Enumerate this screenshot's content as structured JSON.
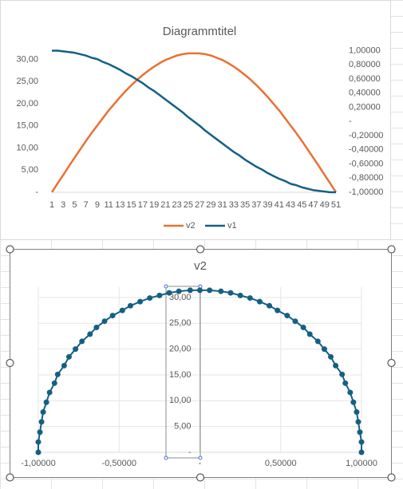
{
  "chart_data": [
    {
      "type": "line",
      "title": "Diagrammtitel",
      "categories": [
        1,
        null,
        3,
        null,
        5,
        null,
        7,
        null,
        9,
        null,
        11,
        null,
        13,
        null,
        15,
        null,
        17,
        null,
        19,
        null,
        21,
        null,
        23,
        null,
        25,
        null,
        27,
        null,
        29,
        null,
        31,
        null,
        33,
        null,
        35,
        null,
        37,
        null,
        39,
        null,
        41,
        null,
        43,
        null,
        45,
        null,
        47,
        null,
        49,
        null,
        51
      ],
      "series": [
        {
          "name": "v2",
          "color": "#e97132",
          "values": [
            0,
            2.0,
            3.9,
            5.9,
            7.8,
            9.7,
            11.6,
            13.4,
            15.1,
            16.8,
            18.5,
            20.0,
            21.5,
            22.9,
            24.2,
            25.4,
            26.5,
            27.5,
            28.4,
            29.2,
            29.9,
            30.4,
            30.9,
            31.2,
            31.4,
            31.4,
            31.4,
            31.2,
            30.9,
            30.4,
            29.9,
            29.2,
            28.4,
            27.5,
            26.5,
            25.4,
            24.2,
            22.9,
            21.5,
            20.0,
            18.5,
            16.8,
            15.1,
            13.4,
            11.6,
            9.7,
            7.8,
            5.9,
            3.9,
            2.0,
            0
          ]
        },
        {
          "name": "v1",
          "color": "#156082",
          "axis": "y2",
          "values": [
            1,
            1.0,
            0.99,
            0.98,
            0.97,
            0.95,
            0.93,
            0.9,
            0.88,
            0.84,
            0.81,
            0.77,
            0.73,
            0.68,
            0.64,
            0.59,
            0.54,
            0.48,
            0.43,
            0.37,
            0.31,
            0.25,
            0.19,
            0.13,
            0.06,
            0,
            -0.06,
            -0.13,
            -0.19,
            -0.25,
            -0.31,
            -0.37,
            -0.43,
            -0.48,
            -0.54,
            -0.59,
            -0.64,
            -0.68,
            -0.73,
            -0.77,
            -0.81,
            -0.84,
            -0.88,
            -0.9,
            -0.93,
            -0.95,
            -0.97,
            -0.98,
            -0.99,
            -1.0,
            -1
          ]
        }
      ],
      "ylim": [
        0,
        32
      ],
      "yticks": [
        {
          "value": 0,
          "label": "-"
        },
        {
          "value": 5,
          "label": "5,00"
        },
        {
          "value": 10,
          "label": "10,00"
        },
        {
          "value": 15,
          "label": "15,00"
        },
        {
          "value": 20,
          "label": "20,00"
        },
        {
          "value": 25,
          "label": "25,00"
        },
        {
          "value": 30,
          "label": "30,00"
        }
      ],
      "y2lim": [
        -1,
        1
      ],
      "y2ticks": [
        {
          "value": 1,
          "label": "1,00000"
        },
        {
          "value": 0.8,
          "label": "0,80000"
        },
        {
          "value": 0.6,
          "label": "0,60000"
        },
        {
          "value": 0.4,
          "label": "0,40000"
        },
        {
          "value": 0.2,
          "label": "0,20000"
        },
        {
          "value": 0,
          "label": "-"
        },
        {
          "value": -0.2,
          "label": "-0,20000"
        },
        {
          "value": -0.4,
          "label": "-0,40000"
        },
        {
          "value": -0.6,
          "label": "-0,60000"
        },
        {
          "value": -0.8,
          "label": "-0,80000"
        },
        {
          "value": -1,
          "label": "-1,00000"
        }
      ],
      "grid": false,
      "legend": "bottom"
    },
    {
      "type": "scatter",
      "title": "v2",
      "series": [
        {
          "color": "#156082",
          "x": [
            1,
            1.0,
            0.99,
            0.98,
            0.97,
            0.95,
            0.93,
            0.9,
            0.88,
            0.84,
            0.81,
            0.77,
            0.73,
            0.68,
            0.64,
            0.59,
            0.54,
            0.48,
            0.43,
            0.37,
            0.31,
            0.25,
            0.19,
            0.13,
            0.06,
            0,
            -0.06,
            -0.13,
            -0.19,
            -0.25,
            -0.31,
            -0.37,
            -0.43,
            -0.48,
            -0.54,
            -0.59,
            -0.64,
            -0.68,
            -0.73,
            -0.77,
            -0.81,
            -0.84,
            -0.88,
            -0.9,
            -0.93,
            -0.95,
            -0.97,
            -0.98,
            -0.99,
            -1.0,
            -1
          ],
          "values": [
            0,
            2.0,
            3.9,
            5.9,
            7.8,
            9.7,
            11.6,
            13.4,
            15.1,
            16.8,
            18.5,
            20.0,
            21.5,
            22.9,
            24.2,
            25.4,
            26.5,
            27.5,
            28.4,
            29.2,
            29.9,
            30.4,
            30.9,
            31.2,
            31.4,
            31.4,
            31.4,
            31.2,
            30.9,
            30.4,
            29.9,
            29.2,
            28.4,
            27.5,
            26.5,
            25.4,
            24.2,
            22.9,
            21.5,
            20.0,
            18.5,
            16.8,
            15.1,
            13.4,
            11.6,
            9.7,
            7.8,
            5.9,
            3.9,
            2.0,
            0
          ]
        }
      ],
      "xlim": [
        -1,
        1
      ],
      "xticks": [
        {
          "value": -1,
          "label": "-1,00000"
        },
        {
          "value": -0.5,
          "label": "-0,50000"
        },
        {
          "value": 0,
          "label": "-"
        },
        {
          "value": 0.5,
          "label": "0,50000"
        },
        {
          "value": 1,
          "label": "1,00000"
        }
      ],
      "ylim": [
        0,
        32
      ],
      "yticks": [
        {
          "value": 0,
          "label": "-"
        },
        {
          "value": 5,
          "label": "5,00"
        },
        {
          "value": 10,
          "label": "10,00"
        },
        {
          "value": 15,
          "label": "15,00"
        },
        {
          "value": 20,
          "label": "20,00"
        },
        {
          "value": 25,
          "label": "25,00"
        },
        {
          "value": 30,
          "label": "30,00"
        }
      ],
      "grid": true
    }
  ]
}
